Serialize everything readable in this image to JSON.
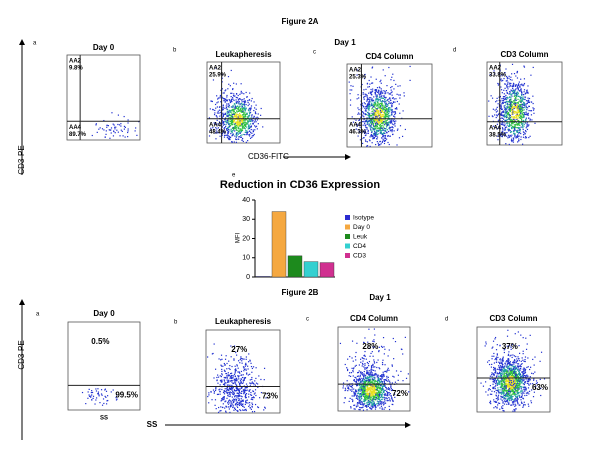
{
  "figure_2a": {
    "title": "Figure 2A",
    "group_label": "Day 1",
    "y_axis_label": "CD3-PE",
    "x_axis_label": "CD36-FITC",
    "panels": [
      {
        "letter": "a",
        "title": "Day 0",
        "upper_gate": "AA2",
        "upper_value": "9.8%",
        "lower_gate": "AA4",
        "lower_value": "89.7%"
      },
      {
        "letter": "b",
        "title": "Leukapheresis",
        "upper_gate": "AA2",
        "upper_value": "25.9%",
        "lower_gate": "AA4",
        "lower_value": "48.4%"
      },
      {
        "letter": "c",
        "title": "CD4 Column",
        "upper_gate": "AA2",
        "upper_value": "25.3%",
        "lower_gate": "AA4",
        "lower_value": "46.3%"
      },
      {
        "letter": "d",
        "title": "CD3 Column",
        "upper_gate": "AA2",
        "upper_value": "33.8%",
        "lower_gate": "AA4",
        "lower_value": "38.5%"
      }
    ]
  },
  "chart_data": {
    "type": "bar",
    "letter": "e",
    "title": "Reduction in CD36 Expression",
    "y_label": "MFI",
    "categories": [
      "Isotype",
      "Day 0",
      "Leuk",
      "CD4",
      "CD3"
    ],
    "values": [
      0.3,
      34,
      11,
      8,
      7.5
    ],
    "colors": [
      "#2b2bd0",
      "#f5a840",
      "#1d8a1d",
      "#33d0d0",
      "#d03090"
    ],
    "ylim": [
      0,
      40
    ],
    "yticks": [
      0,
      10,
      20,
      30,
      40
    ],
    "legend": "right"
  },
  "figure_2b": {
    "title": "Figure 2B",
    "group_label": "Day 1",
    "y_axis_label": "CD3-PE",
    "x_axis_label": "SS",
    "panels": [
      {
        "letter": "a",
        "title": "Day 0",
        "upper_value": "0.5%",
        "lower_value": "99.5%",
        "x_label": "SS"
      },
      {
        "letter": "b",
        "title": "Leukapheresis",
        "upper_value": "27%",
        "lower_value": "73%"
      },
      {
        "letter": "c",
        "title": "CD4 Column",
        "upper_value": "28%",
        "lower_value": "72%"
      },
      {
        "letter": "d",
        "title": "CD3 Column",
        "upper_value": "37%",
        "lower_value": "63%"
      }
    ]
  }
}
